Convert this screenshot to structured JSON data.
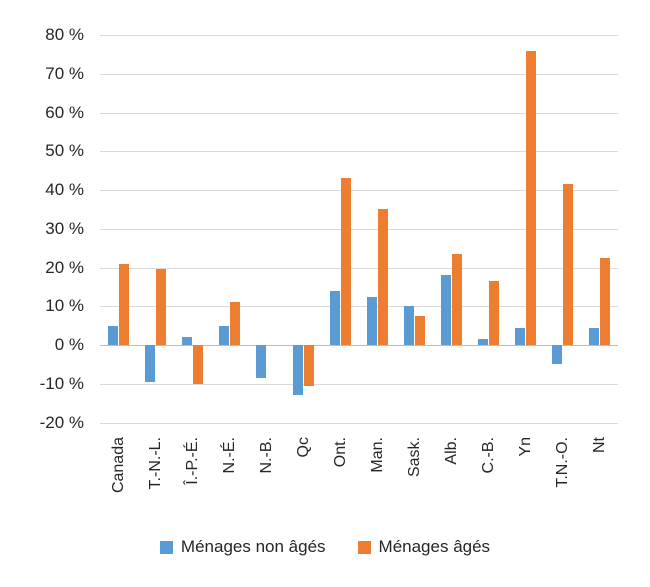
{
  "chart_data": {
    "type": "bar",
    "title": "",
    "xlabel": "",
    "ylabel": "",
    "categories": [
      "Canada",
      "T.-N.-L.",
      "Î.-P.-É.",
      "N.-É.",
      "N.-B.",
      "Qc",
      "Ont.",
      "Man.",
      "Sask.",
      "Alb.",
      "C.-B.",
      "Yn",
      "T.N.-O.",
      "Nt"
    ],
    "series": [
      {
        "name": "Ménages non âgés",
        "color": "#5B9BD5",
        "values": [
          5,
          -9.5,
          2,
          5,
          -8.5,
          -13,
          14,
          12.5,
          10,
          18,
          1.5,
          4.5,
          -5,
          4.5
        ]
      },
      {
        "name": "Ménages âgés",
        "color": "#ED7D31",
        "values": [
          21,
          19.5,
          -10,
          11,
          0,
          -10.5,
          43,
          35,
          7.5,
          23.5,
          16.5,
          76,
          41.5,
          22.5
        ]
      }
    ],
    "ylim": [
      -20,
      80
    ],
    "y_ticks": [
      {
        "value": 80,
        "label": "80 %"
      },
      {
        "value": 70,
        "label": "70 %"
      },
      {
        "value": 60,
        "label": "60 %"
      },
      {
        "value": 50,
        "label": "50 %"
      },
      {
        "value": 40,
        "label": "40 %"
      },
      {
        "value": 30,
        "label": "30 %"
      },
      {
        "value": 20,
        "label": "20 %"
      },
      {
        "value": 10,
        "label": "10 %"
      },
      {
        "value": 0,
        "label": "0 %"
      },
      {
        "value": -10,
        "label": "-10 %"
      },
      {
        "value": -20,
        "label": "-20 %"
      }
    ],
    "grid": "horizontal",
    "legend_position": "bottom",
    "colors": {
      "gridline": "#D9D9D9",
      "zero_line": "#BDBDBD",
      "text": "#262626",
      "background": "#FFFFFF"
    }
  }
}
